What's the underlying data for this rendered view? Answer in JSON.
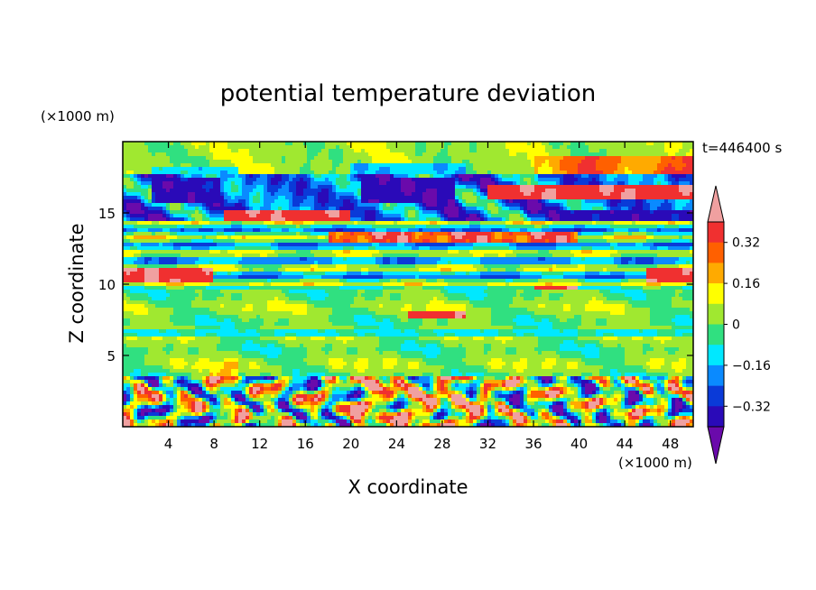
{
  "chart_data": {
    "type": "heatmap",
    "title": "potential temperature deviation",
    "xlabel": "X coordinate",
    "ylabel": "Z coordinate",
    "x_unit": "(×1000 m)",
    "y_unit": "(×1000 m)",
    "time_label": "t=446400 s",
    "xlim": [
      0,
      50
    ],
    "ylim": [
      0,
      20
    ],
    "x_ticks": [
      4,
      8,
      12,
      16,
      20,
      24,
      28,
      32,
      36,
      40,
      44,
      48
    ],
    "x_tick_labels": [
      "4",
      "8",
      "12",
      "16",
      "20",
      "24",
      "28",
      "32",
      "36",
      "40",
      "44",
      "48"
    ],
    "y_ticks": [
      5,
      10,
      15
    ],
    "y_tick_labels": [
      "5",
      "10",
      "15"
    ],
    "colorbar": {
      "levels": [
        -0.4,
        -0.32,
        -0.24,
        -0.16,
        -0.08,
        0,
        0.08,
        0.16,
        0.24,
        0.32,
        0.4
      ],
      "labeled_levels": [
        0.32,
        0.16,
        0,
        -0.16,
        -0.32
      ],
      "labels": [
        "0.32",
        "0.16",
        "0",
        "−0.16",
        "−0.32"
      ],
      "colors": [
        "#6a0aab",
        "#2a0ab8",
        "#0a3ad8",
        "#0a8aff",
        "#00e8ff",
        "#30e080",
        "#a0e830",
        "#ffff00",
        "#ffaa00",
        "#ff6000",
        "#f03030",
        "#f0a0a0"
      ],
      "extend": "both"
    },
    "bands": [
      {
        "z": [
          0,
          3.5
        ],
        "pattern": "turbulent mixed layer, values −0.4 to 0.4"
      },
      {
        "z": [
          3.5,
          9.5
        ],
        "value": 0.02
      },
      {
        "z": [
          9.5,
          14.5
        ],
        "value": -0.12
      },
      {
        "z": [
          14.5,
          17.5
        ],
        "value": -0.3
      },
      {
        "z": [
          17.5,
          20
        ],
        "value": 0.05
      }
    ]
  }
}
